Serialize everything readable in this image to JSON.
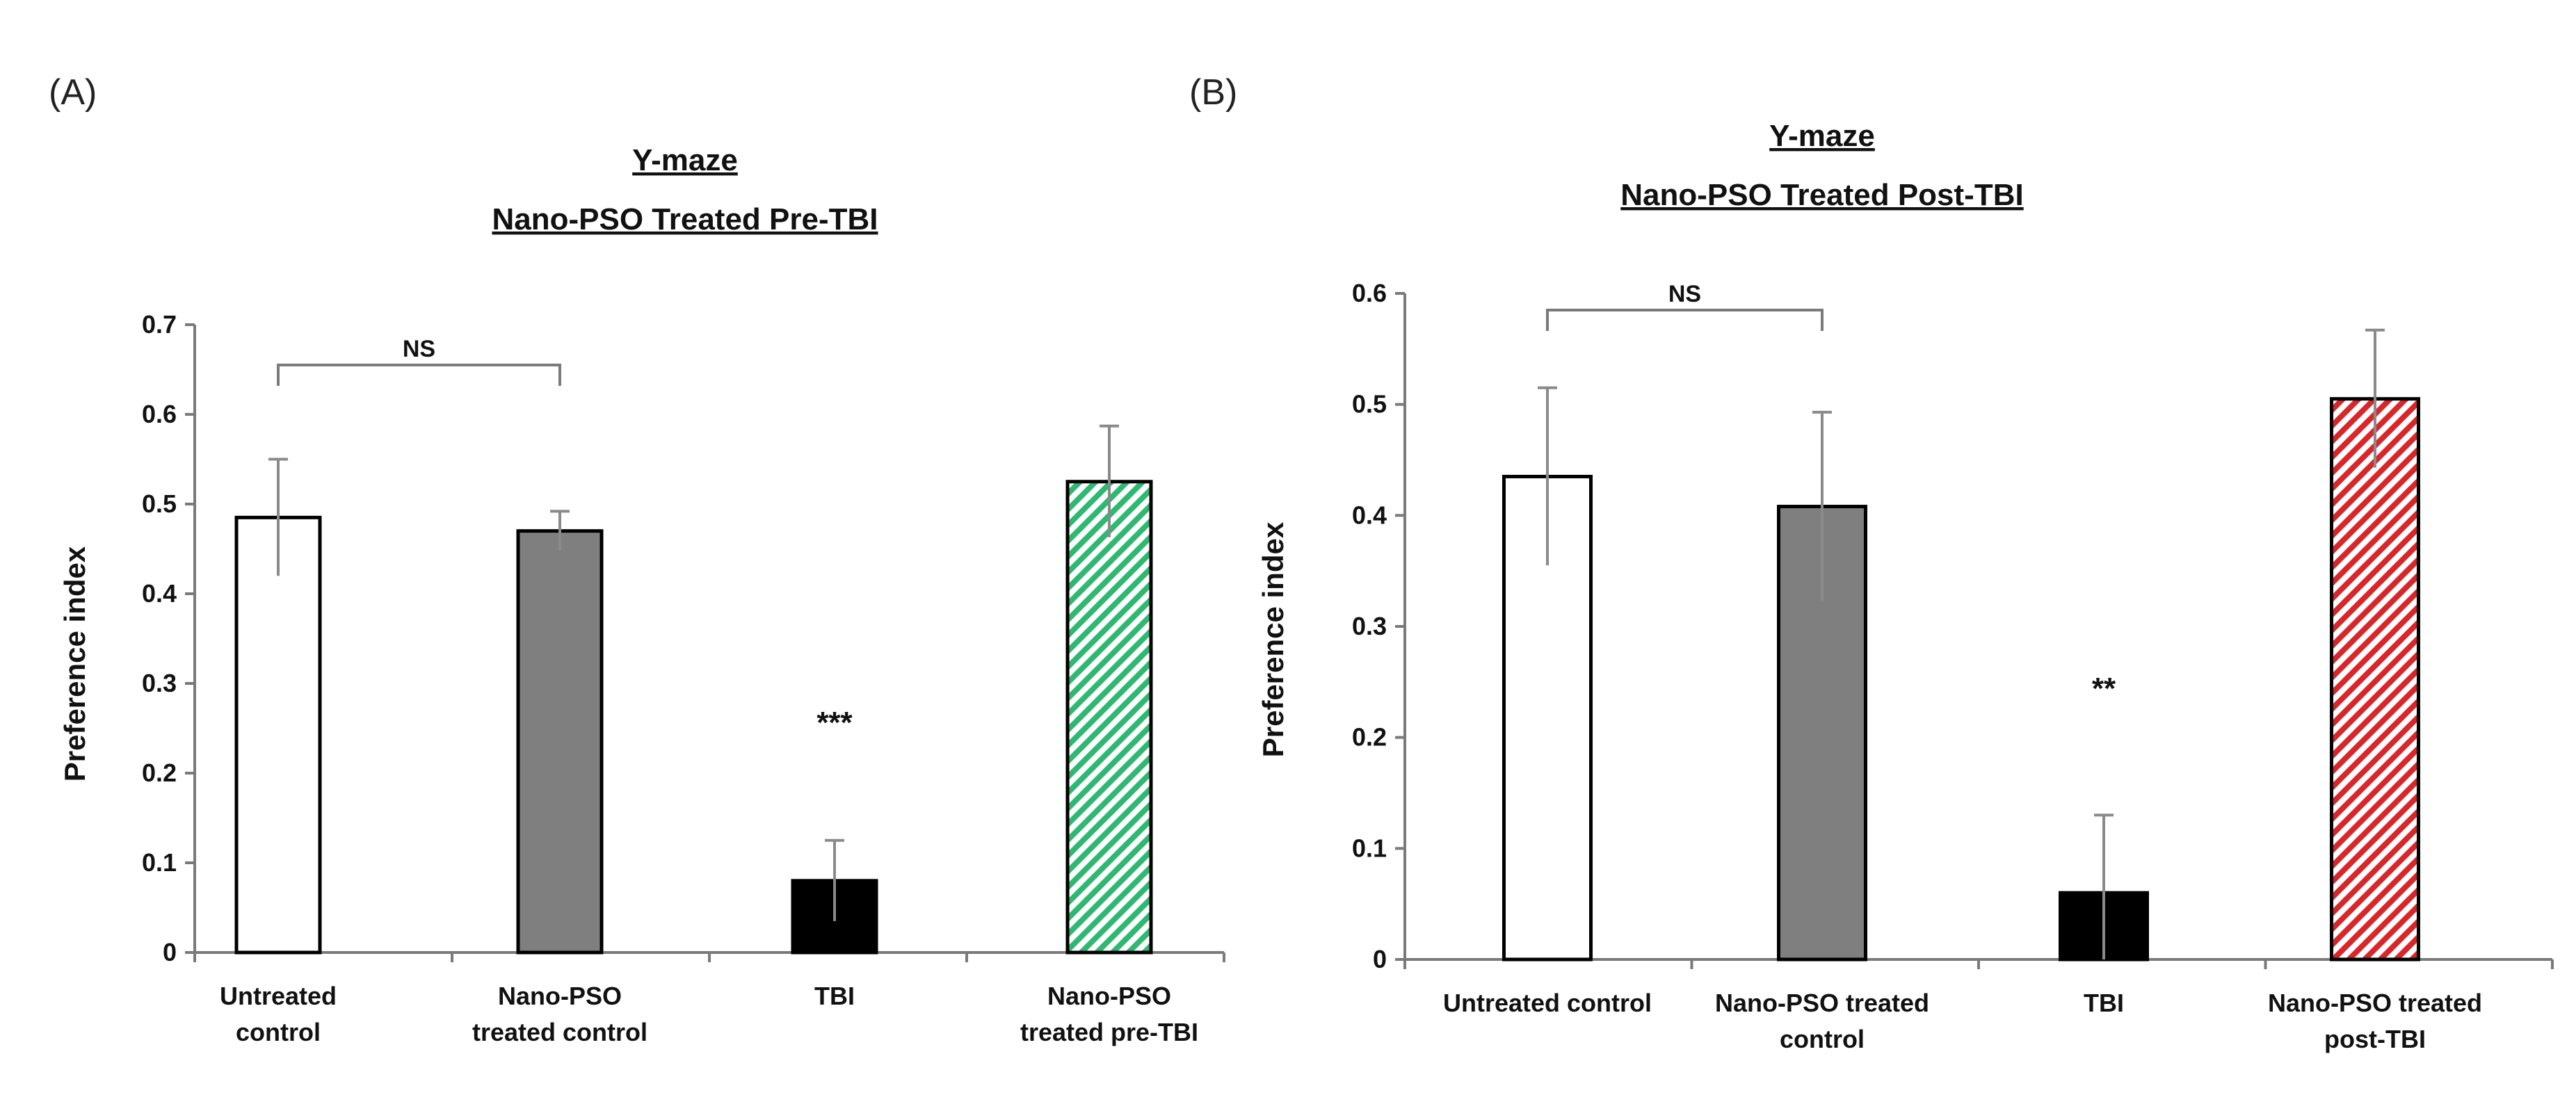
{
  "chart_data": [
    {
      "type": "bar",
      "panel_label": "(A)",
      "title": [
        "Y-maze",
        "Nano-PSO  Treated  Pre-TBI"
      ],
      "xlabel": "",
      "ylabel": "Preference index",
      "ylim": [
        0,
        0.7
      ],
      "yticks": [
        0,
        0.1,
        0.2,
        0.3,
        0.4,
        0.5,
        0.6,
        0.7
      ],
      "ytick_labels": [
        "0",
        "0.1",
        "0.2",
        "0.3",
        "0.4",
        "0.5",
        "0.6",
        "0.7"
      ],
      "categories": [
        [
          "Untreated",
          "control"
        ],
        [
          "Nano-PSO",
          "treated control"
        ],
        [
          "TBI"
        ],
        [
          "Nano-PSO",
          "treated pre-TBI"
        ]
      ],
      "values": [
        0.485,
        0.47,
        0.08,
        0.525
      ],
      "errors": [
        0.065,
        0.022,
        0.045,
        0.062
      ],
      "fills": [
        "#ffffff",
        "#7f7f7f",
        "#000000",
        "hatch:#2eb872"
      ],
      "annotations": [
        {
          "text": "***",
          "bar": 2,
          "y": 0.245
        }
      ],
      "brackets": [
        {
          "text": "NS",
          "from": 0,
          "to": 1,
          "y": 0.655
        }
      ]
    },
    {
      "type": "bar",
      "panel_label": "(B)",
      "title": [
        "Y-maze",
        "Nano-PSO  Treated  Post-TBI"
      ],
      "xlabel": "",
      "ylabel": "Preference index",
      "ylim": [
        0,
        0.6
      ],
      "yticks": [
        0,
        0.1,
        0.2,
        0.3,
        0.4,
        0.5,
        0.6
      ],
      "ytick_labels": [
        "0",
        "0.1",
        "0.2",
        "0.3",
        "0.4",
        "0.5",
        "0.6"
      ],
      "categories": [
        [
          "Untreated control"
        ],
        [
          "Nano-PSO treated",
          "control"
        ],
        [
          "TBI"
        ],
        [
          "Nano-PSO treated",
          "post-TBI"
        ]
      ],
      "values": [
        0.435,
        0.408,
        0.06,
        0.505
      ],
      "errors": [
        0.08,
        0.085,
        0.07,
        0.062
      ],
      "fills": [
        "#ffffff",
        "#7f7f7f",
        "#000000",
        "hatch:#d9262b"
      ],
      "annotations": [
        {
          "text": "**",
          "bar": 2,
          "y": 0.235
        }
      ],
      "brackets": [
        {
          "text": "NS",
          "from": 0,
          "to": 1,
          "y": 0.585
        }
      ]
    }
  ]
}
